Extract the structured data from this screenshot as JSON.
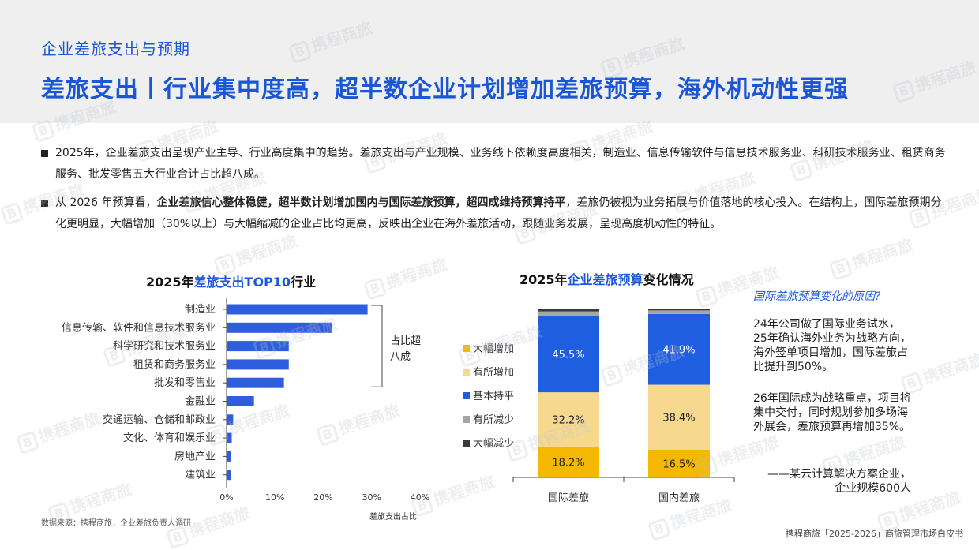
{
  "header": {
    "section_label": "企业差旅支出与预期",
    "headline": "差旅支出丨行业集中度高，超半数企业计划增加差旅预算，海外机动性更强"
  },
  "watermark_text": "携程商旅",
  "bullets": [
    {
      "segments": [
        {
          "text": "2025年，企业差旅支出呈现产业主导、行业高度集中的趋势。差旅支出与产业规模、业务线下依赖度高度相关，制造业、信息传输软件与信息技术服务业、科研技术服务业、租赁商务服务、批发零售五大行业合计占比超八成。",
          "bold": false
        }
      ]
    },
    {
      "segments": [
        {
          "text": "从 2026 年预算看，",
          "bold": false
        },
        {
          "text": "企业差旅信心整体稳健，超半数计划增加国内与国际差旅预算，超四成维持预算持平",
          "bold": true
        },
        {
          "text": "，差旅仍被视为业务拓展与价值落地的核心投入。在结构上，国际差旅预期分化更明显，大幅增加（30%以上）与大幅缩减的企业占比均更高，反映出企业在海外差旅活动，跟随业务发展，呈现高度机动性的特征。",
          "bold": false
        }
      ]
    }
  ],
  "colors": {
    "accent": "#1a56d6",
    "bar": "#2f5de0",
    "stack_large_increase": "#f5b800",
    "stack_some_increase": "#f6d98f",
    "stack_flat": "#1f5ee0",
    "stack_some_decrease": "#a6a6a6",
    "stack_large_decrease": "#3a3a3a"
  },
  "chart_data": [
    {
      "type": "bar",
      "orientation": "horizontal",
      "title_parts": [
        {
          "text": "2025年",
          "highlight": false
        },
        {
          "text": "差旅支出TOP10",
          "highlight": true
        },
        {
          "text": "行业",
          "highlight": false
        }
      ],
      "categories": [
        "制造业",
        "信息传输、软件和信息技术服务业",
        "科学研究和技术服务业",
        "租赁和商务服务业",
        "批发和零售业",
        "金融业",
        "交通运输、仓储和邮政业",
        "文化、体育和娱乐业",
        "房地产业",
        "建筑业"
      ],
      "values": [
        0.29,
        0.217,
        0.127,
        0.127,
        0.117,
        0.055,
        0.012,
        0.009,
        0.008,
        0.007
      ],
      "xlim": [
        0,
        0.4
      ],
      "xticks": [
        "0%",
        "10%",
        "20%",
        "30%",
        "40%"
      ],
      "xlabel": "差旅支出占比",
      "annotation": "占比超八成",
      "annotation_lines": [
        "占比超",
        "八成"
      ]
    },
    {
      "type": "bar",
      "stacked": true,
      "title_parts": [
        {
          "text": "2025年",
          "highlight": false
        },
        {
          "text": "企业差旅预算",
          "highlight": true
        },
        {
          "text": "变化情况",
          "highlight": false
        }
      ],
      "categories": [
        "国际差旅",
        "国内差旅"
      ],
      "series": [
        {
          "name": "大幅增加",
          "values": [
            18.2,
            16.5
          ],
          "labels": [
            "18.2%",
            "16.5%"
          ]
        },
        {
          "name": "有所增加",
          "values": [
            32.2,
            38.4
          ],
          "labels": [
            "32.2%",
            "38.4%"
          ]
        },
        {
          "name": "基本持平",
          "values": [
            45.5,
            41.9
          ],
          "labels": [
            "45.5%",
            "41.9%"
          ]
        },
        {
          "name": "有所减少",
          "values": [
            2.4,
            2.1
          ],
          "labels": [
            "",
            ""
          ]
        },
        {
          "name": "大幅减少",
          "values": [
            1.7,
            1.1
          ],
          "labels": [
            "",
            ""
          ]
        }
      ],
      "legend_order": [
        "大幅增加",
        "有所增加",
        "基本持平",
        "有所减少",
        "大幅减少"
      ],
      "ylim": [
        0,
        100
      ],
      "legend": "left"
    }
  ],
  "side_panel": {
    "title": "国际差旅预算变化的原因?",
    "paragraph_1": "24年公司做了国际业务试水，25年确认海外业务为战略方向，海外签单项目增加，国际差旅占比提升到50%。",
    "paragraph_2": "26年国际成为战略重点，项目将集中交付，同时规划参加多场海外展会，差旅预算再增加35%。",
    "signature_1": "——某云计算解决方案企业，",
    "signature_2": "企业规模600人"
  },
  "source_note": "数据来源：携程商旅，企业差旅负责人调研",
  "footer_note": "携程商旅「2025-2026」商旅管理市场白皮书"
}
